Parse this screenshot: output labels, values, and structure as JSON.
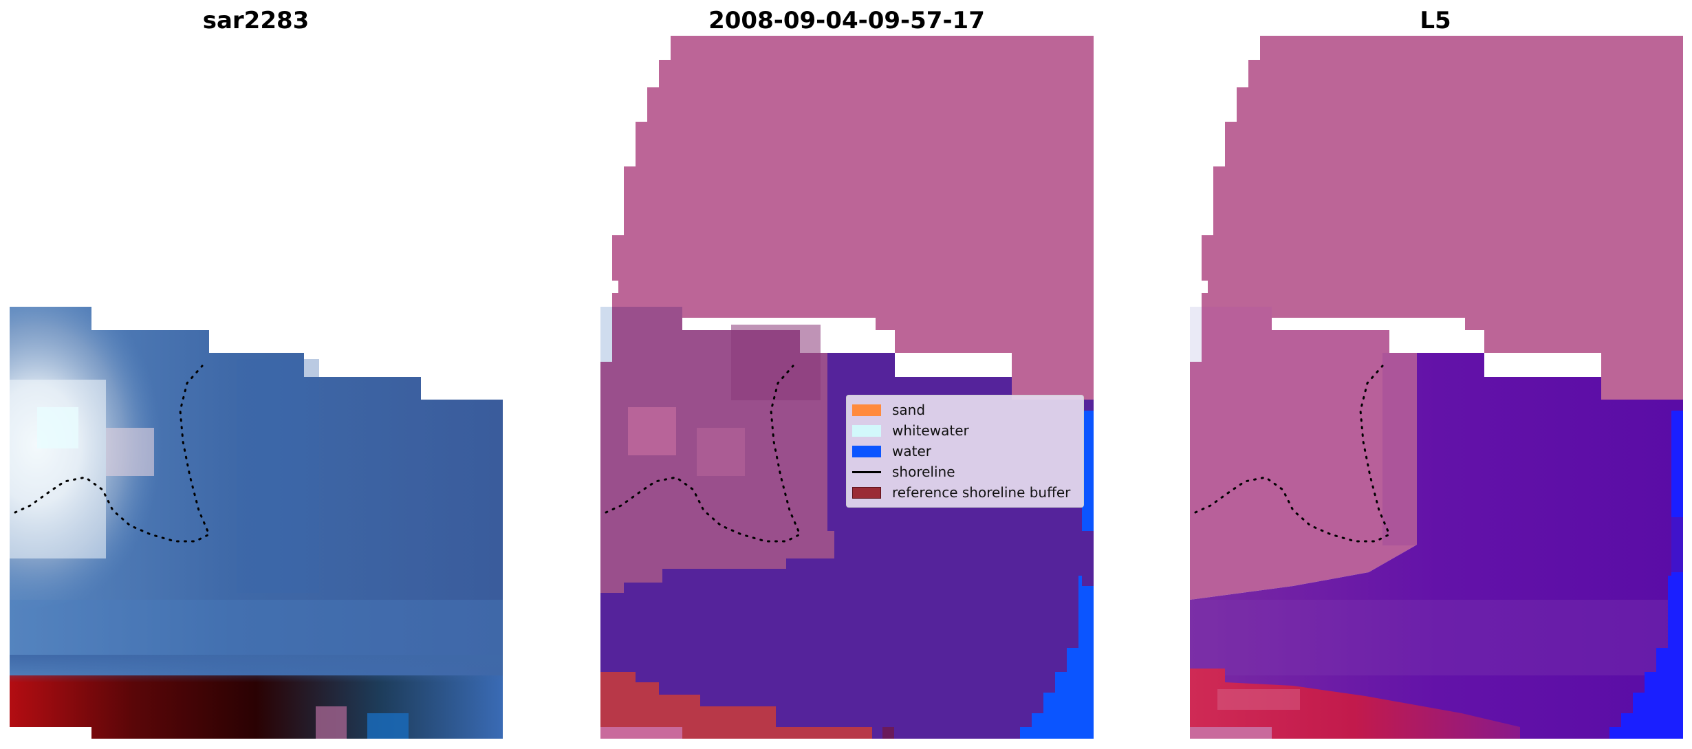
{
  "panels": [
    {
      "title": "sar2283"
    },
    {
      "title": "2008-09-04-09-57-17"
    },
    {
      "title": "L5"
    }
  ],
  "legend": {
    "items": [
      {
        "label": "sand",
        "kind": "patch",
        "color": "#ff8a3d"
      },
      {
        "label": "whitewater",
        "kind": "patch",
        "color": "#d2f8fb"
      },
      {
        "label": "water",
        "kind": "patch",
        "color": "#0b55ff"
      },
      {
        "label": "shoreline",
        "kind": "line",
        "color": "#000000"
      },
      {
        "label": "reference shoreline buffer",
        "kind": "patch",
        "color": "#9a2b35"
      }
    ]
  },
  "colors": {
    "rgb_water": "#3c62a2",
    "rgb_whitewater": "#e9f1f8",
    "rgb_dark_land": "#4a0b0e",
    "class_sand_overlay": "#bc6597",
    "class_water_overlay": "#55239b",
    "class_water_pure": "#0b55ff",
    "class_buffer_overlay": "#b83848",
    "l5_water_overlay": "#5f10a6",
    "l5_water_pure": "#1a1fff",
    "l5_buffer_overlay": "#cc1f4f"
  }
}
